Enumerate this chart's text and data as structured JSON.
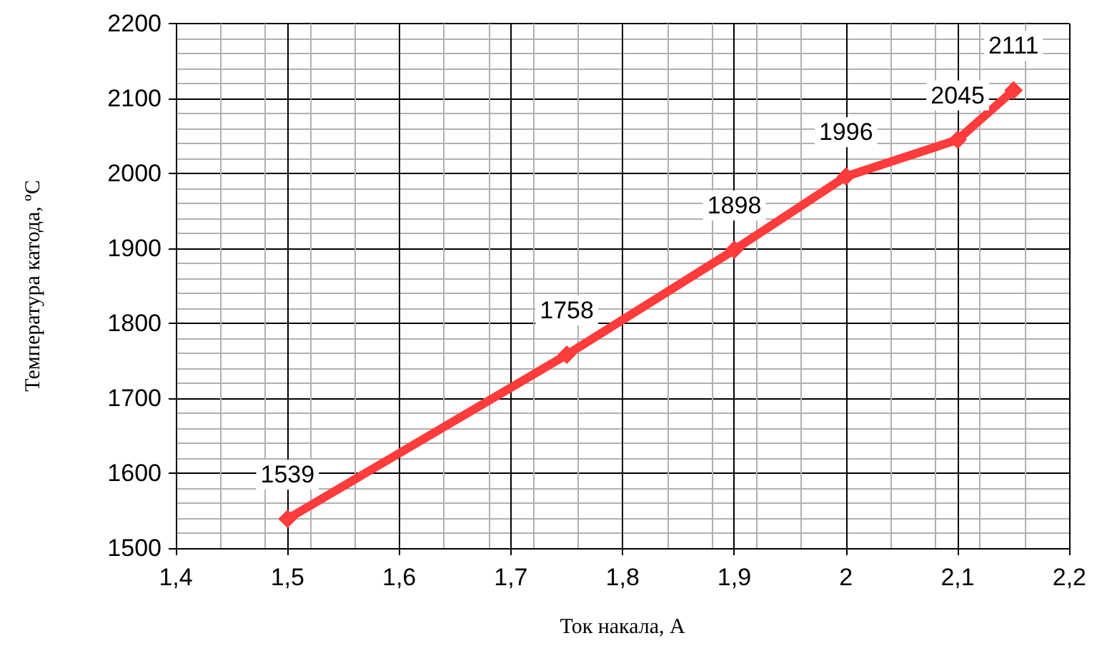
{
  "chart_data": {
    "type": "line",
    "xlabel": "Ток накала, А",
    "ylabel": "Температура катода, ºС",
    "x": [
      1.5,
      1.75,
      1.9,
      2,
      2.1,
      2.15
    ],
    "series": [
      {
        "color": "#ff3b3b",
        "values": [
          1539,
          1758,
          1898,
          1996,
          2045,
          2111
        ]
      }
    ],
    "xlim": [
      1.4,
      2.2
    ],
    "xticks": [
      {
        "value": 1.4,
        "label": "1,4"
      },
      {
        "value": 1.5,
        "label": "1,5"
      },
      {
        "value": 1.6,
        "label": "1,6"
      },
      {
        "value": 1.7,
        "label": "1,7"
      },
      {
        "value": 1.8,
        "label": "1,8"
      },
      {
        "value": 1.9,
        "label": "1,9"
      },
      {
        "value": 2,
        "label": "2"
      },
      {
        "value": 2.1,
        "label": "2,1"
      },
      {
        "value": 2.2,
        "label": "2,2"
      }
    ],
    "ylim": [
      1500,
      2200
    ],
    "yticks": [
      1500,
      1600,
      1700,
      1800,
      1900,
      2000,
      2100,
      2200
    ],
    "grid": true,
    "marker": "diamond",
    "line_style": "solid",
    "data_labels": true
  }
}
